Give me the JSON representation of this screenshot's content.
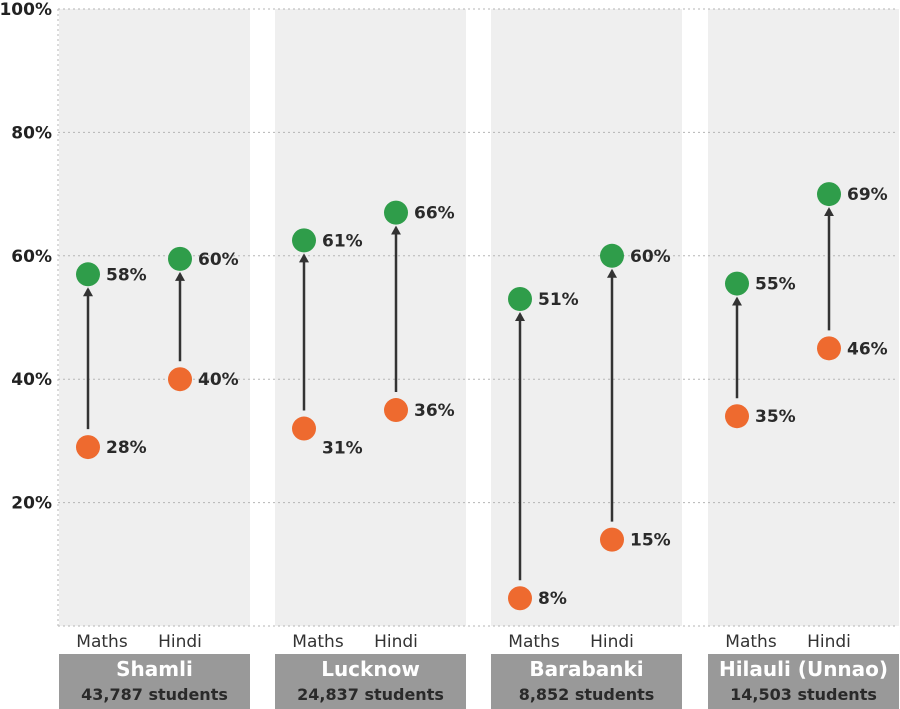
{
  "chart_data": {
    "type": "dumbbell",
    "ylim": [
      0,
      100
    ],
    "y_ticks": [
      20,
      40,
      60,
      80,
      100
    ],
    "y_tick_format": "{v}%",
    "grid": true,
    "colors": {
      "before": "#ee6a2f",
      "after": "#2f9d4a",
      "arrow": "#333333",
      "panel": "#efefef",
      "label_band": "#999999"
    },
    "groups": [
      {
        "name": "Shamli",
        "students": "43,787 students",
        "subjects": [
          {
            "subject": "Maths",
            "before": 28,
            "after": 58,
            "before_y": 29,
            "after_y": 57
          },
          {
            "subject": "Hindi",
            "before": 40,
            "after": 60,
            "before_y": 40,
            "after_y": 59.5
          }
        ]
      },
      {
        "name": "Lucknow",
        "students": "24,837 students",
        "subjects": [
          {
            "subject": "Maths",
            "before": 31,
            "after": 61,
            "before_y": 32,
            "after_y": 62.5
          },
          {
            "subject": "Hindi",
            "before": 36,
            "after": 66,
            "before_y": 35,
            "after_y": 67
          }
        ]
      },
      {
        "name": "Barabanki",
        "students": "8,852 students",
        "subjects": [
          {
            "subject": "Maths",
            "before": 8,
            "after": 51,
            "before_y": 4.5,
            "after_y": 53
          },
          {
            "subject": "Hindi",
            "before": 15,
            "after": 60,
            "before_y": 14,
            "after_y": 60
          }
        ]
      },
      {
        "name": "Hilauli (Unnao)",
        "students": "14,503 students",
        "subjects": [
          {
            "subject": "Maths",
            "before": 35,
            "after": 55,
            "before_y": 34,
            "after_y": 55.5
          },
          {
            "subject": "Hindi",
            "before": 46,
            "after": 69,
            "before_y": 45,
            "after_y": 70
          }
        ]
      }
    ]
  }
}
